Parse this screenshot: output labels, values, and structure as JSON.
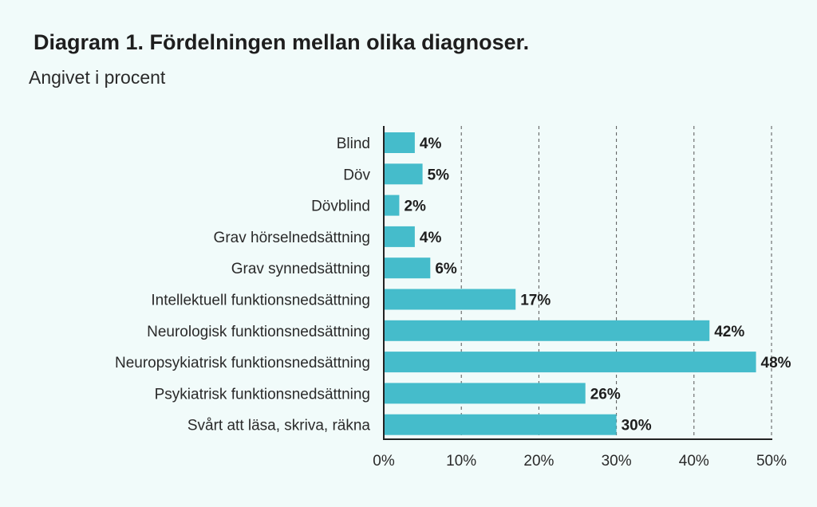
{
  "header": {
    "title": "Diagram 1. Fördelningen mellan olika diagnoser.",
    "subtitle": "Angivet i procent"
  },
  "colors": {
    "bar": "#45bccb",
    "grid": "#555555",
    "axis": "#222222",
    "background": "#f1fbfa"
  },
  "chart_data": {
    "type": "bar",
    "orientation": "horizontal",
    "title": "Diagram 1. Fördelningen mellan olika diagnoser.",
    "subtitle": "Angivet i procent",
    "categories": [
      "Blind",
      "Döv",
      "Dövblind",
      "Grav hörselnedsättning",
      "Grav synnedsättning",
      "Intellektuell funktionsnedsättning",
      "Neurologisk funktionsnedsättning",
      "Neuropsykiatrisk funktionsnedsättning",
      "Psykiatrisk funktionsnedsättning",
      "Svårt att läsa, skriva, räkna"
    ],
    "values": [
      4,
      5,
      2,
      4,
      6,
      17,
      42,
      48,
      26,
      30
    ],
    "value_labels": [
      "4%",
      "5%",
      "2%",
      "4%",
      "6%",
      "17%",
      "42%",
      "48%",
      "26%",
      "30%"
    ],
    "xlim": [
      0,
      50
    ],
    "xticks": [
      0,
      10,
      20,
      30,
      40,
      50
    ],
    "xtick_labels": [
      "0%",
      "10%",
      "20%",
      "30%",
      "40%",
      "50%"
    ],
    "grid": "vertical dashed",
    "legend": "none"
  }
}
